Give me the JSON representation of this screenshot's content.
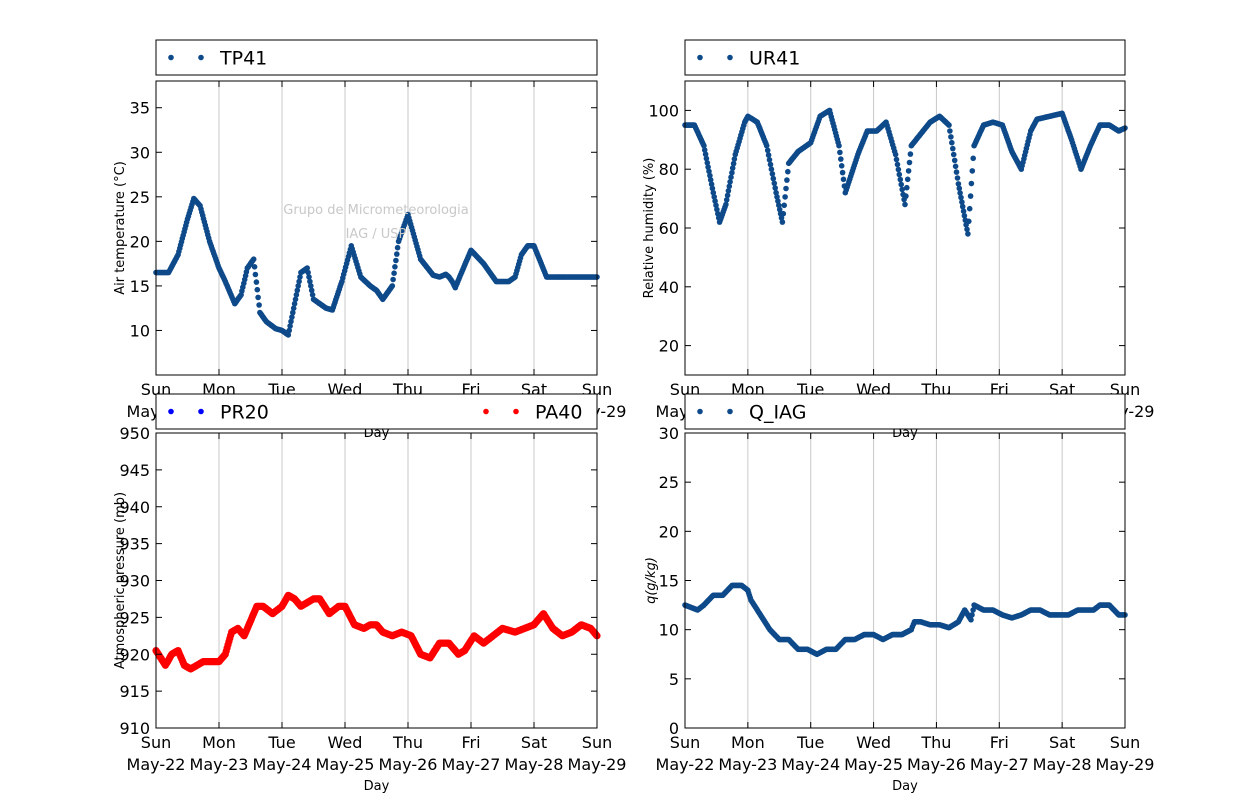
{
  "watermark": {
    "line1": "Grupo de Micrometeorologia",
    "line2": "IAG / USP"
  },
  "chart_data": [
    {
      "type": "scatter",
      "ylabel": "Air temperature (°C)",
      "xlabel": "Day",
      "ylim": [
        5,
        38
      ],
      "yticks": [
        10,
        15,
        20,
        25,
        30,
        35
      ],
      "xticks": [
        "Sun\nMay-22",
        "Mon\nMay-23",
        "Tue\nMay-24",
        "Wed\nMay-25",
        "Thu\nMay-26",
        "Fri\nMay-27",
        "Sat\nMay-28",
        "Sun\nMay-29"
      ],
      "grid": "x",
      "legend": "top",
      "series": [
        {
          "name": "TP41",
          "color": "#0e4a8a",
          "x_days": [
            0,
            0.2,
            0.35,
            0.5,
            0.6,
            0.7,
            0.85,
            1.0,
            1.1,
            1.25,
            1.35,
            1.45,
            1.55,
            1.65,
            1.75,
            1.9,
            2.0,
            2.1,
            2.2,
            2.3,
            2.4,
            2.5,
            2.6,
            2.7,
            2.8,
            2.95,
            3.1,
            3.25,
            3.4,
            3.5,
            3.6,
            3.75,
            3.85,
            4.0,
            4.2,
            4.4,
            4.5,
            4.6,
            4.65,
            4.7,
            4.75,
            4.85,
            5.0,
            5.2,
            5.4,
            5.5,
            5.6,
            5.7,
            5.8,
            5.9,
            6.0,
            6.2,
            6.35,
            6.5,
            6.6,
            6.7,
            6.8,
            7.0
          ],
          "y": [
            16.5,
            16.5,
            18.5,
            22.5,
            24.8,
            24.0,
            20.0,
            17.0,
            15.5,
            13.0,
            14.0,
            17.0,
            18.0,
            12.0,
            11.0,
            10.2,
            10.0,
            9.5,
            13.0,
            16.5,
            17.0,
            13.5,
            13.0,
            12.5,
            12.3,
            15.5,
            19.5,
            16.0,
            15.0,
            14.5,
            13.5,
            15.0,
            20.0,
            23.0,
            18.0,
            16.2,
            16.0,
            16.3,
            16.0,
            15.5,
            14.8,
            16.5,
            19.0,
            17.5,
            15.5,
            15.5,
            15.5,
            16.0,
            18.5,
            19.5,
            19.5,
            16.0,
            16.0,
            16.0,
            16.0,
            16.0,
            16.0,
            16.0
          ]
        }
      ]
    },
    {
      "type": "scatter",
      "ylabel": "Relative humidity (%)",
      "xlabel": "Day",
      "ylim": [
        10,
        110
      ],
      "yticks": [
        20,
        40,
        60,
        80,
        100
      ],
      "xticks": [
        "Sun\nMay-22",
        "Mon\nMay-23",
        "Tue\nMay-24",
        "Wed\nMay-25",
        "Thu\nMay-26",
        "Fri\nMay-27",
        "Sat\nMay-28",
        "Sun\nMay-29"
      ],
      "grid": "x",
      "legend": "top",
      "series": [
        {
          "name": "UR41",
          "color": "#0e4a8a",
          "x_days": [
            0,
            0.15,
            0.3,
            0.45,
            0.55,
            0.65,
            0.8,
            0.95,
            1.0,
            1.15,
            1.3,
            1.45,
            1.55,
            1.65,
            1.8,
            2.0,
            2.15,
            2.3,
            2.45,
            2.55,
            2.75,
            2.9,
            3.05,
            3.2,
            3.35,
            3.5,
            3.6,
            3.75,
            3.9,
            4.05,
            4.2,
            4.35,
            4.5,
            4.6,
            4.75,
            4.9,
            5.05,
            5.2,
            5.35,
            5.5,
            5.6,
            5.8,
            6.0,
            6.15,
            6.3,
            6.45,
            6.6,
            6.75,
            6.9,
            7.0
          ],
          "y": [
            95,
            95,
            88,
            72,
            62,
            68,
            85,
            96,
            98,
            96,
            88,
            72,
            62,
            82,
            86,
            89,
            98,
            100,
            88,
            72,
            85,
            93,
            93,
            96,
            85,
            68,
            88,
            92,
            96,
            98,
            95,
            75,
            58,
            88,
            95,
            96,
            95,
            86,
            80,
            93,
            97,
            98,
            99,
            90,
            80,
            88,
            95,
            95,
            93,
            94
          ]
        }
      ]
    },
    {
      "type": "scatter",
      "ylabel": "Atmospheric pressure (mb)",
      "xlabel": "Day",
      "ylim": [
        910,
        950
      ],
      "yticks": [
        910,
        915,
        920,
        925,
        930,
        935,
        940,
        945,
        950
      ],
      "xticks": [
        "Sun\nMay-22",
        "Mon\nMay-23",
        "Tue\nMay-24",
        "Wed\nMay-25",
        "Thu\nMay-26",
        "Fri\nMay-27",
        "Sat\nMay-28",
        "Sun\nMay-29"
      ],
      "grid": "x",
      "legend": "top",
      "series": [
        {
          "name": "PR20",
          "color": "#0000ff",
          "x_days": [],
          "y": []
        },
        {
          "name": "PA40",
          "color": "#ff0000",
          "x_days": [
            0,
            0.15,
            0.25,
            0.35,
            0.45,
            0.55,
            0.65,
            0.75,
            0.85,
            1.0,
            1.1,
            1.2,
            1.3,
            1.4,
            1.5,
            1.6,
            1.7,
            1.85,
            2.0,
            2.1,
            2.2,
            2.3,
            2.4,
            2.5,
            2.6,
            2.75,
            2.9,
            3.0,
            3.15,
            3.3,
            3.4,
            3.5,
            3.6,
            3.75,
            3.9,
            4.05,
            4.2,
            4.35,
            4.5,
            4.65,
            4.8,
            4.9,
            5.05,
            5.2,
            5.35,
            5.5,
            5.7,
            5.85,
            6.0,
            6.15,
            6.3,
            6.45,
            6.6,
            6.75,
            6.9,
            7.0
          ],
          "y": [
            920.5,
            918.5,
            920,
            920.5,
            918.5,
            918,
            918.5,
            919,
            919,
            919,
            920,
            923,
            923.5,
            922.5,
            924.5,
            926.5,
            926.5,
            925.5,
            926.5,
            928,
            927.5,
            926.5,
            927,
            927.5,
            927.5,
            925.5,
            926.5,
            926.5,
            924,
            923.5,
            924,
            924,
            923,
            922.5,
            923,
            922.5,
            920,
            919.5,
            921.5,
            921.5,
            920,
            920.5,
            922.5,
            921.5,
            922.5,
            923.5,
            923,
            923.5,
            924,
            925.5,
            923.5,
            922.5,
            923,
            924,
            923.5,
            922.5
          ]
        }
      ]
    },
    {
      "type": "scatter",
      "ylabel": "q(g/kg)",
      "xlabel": "Day",
      "ylim": [
        0,
        30
      ],
      "yticks": [
        0,
        5,
        10,
        15,
        20,
        25,
        30
      ],
      "xticks": [
        "Sun\nMay-22",
        "Mon\nMay-23",
        "Tue\nMay-24",
        "Wed\nMay-25",
        "Thu\nMay-26",
        "Fri\nMay-27",
        "Sat\nMay-28",
        "Sun\nMay-29"
      ],
      "grid": "x",
      "legend": "top",
      "series": [
        {
          "name": "Q_IAG",
          "color": "#0e4a8a",
          "x_days": [
            0,
            0.2,
            0.3,
            0.45,
            0.6,
            0.75,
            0.9,
            1.0,
            1.05,
            1.2,
            1.35,
            1.5,
            1.65,
            1.8,
            1.95,
            2.1,
            2.25,
            2.4,
            2.55,
            2.7,
            2.85,
            3.0,
            3.15,
            3.3,
            3.45,
            3.6,
            3.65,
            3.75,
            3.9,
            4.05,
            4.2,
            4.35,
            4.45,
            4.55,
            4.6,
            4.75,
            4.9,
            5.05,
            5.2,
            5.35,
            5.5,
            5.65,
            5.8,
            5.95,
            6.1,
            6.25,
            6.35,
            6.5,
            6.6,
            6.75,
            6.9,
            7.0
          ],
          "y": [
            12.5,
            12,
            12.5,
            13.5,
            13.5,
            14.5,
            14.5,
            14,
            13,
            11.5,
            10,
            9,
            9,
            8,
            8,
            7.5,
            8,
            8,
            9,
            9,
            9.5,
            9.5,
            9,
            9.5,
            9.5,
            10,
            10.8,
            10.8,
            10.5,
            10.5,
            10.2,
            10.8,
            12,
            11,
            12.5,
            12,
            12,
            11.5,
            11.2,
            11.5,
            12,
            12,
            11.5,
            11.5,
            11.5,
            12,
            12,
            12,
            12.5,
            12.5,
            11.5,
            11.5
          ]
        }
      ]
    }
  ]
}
